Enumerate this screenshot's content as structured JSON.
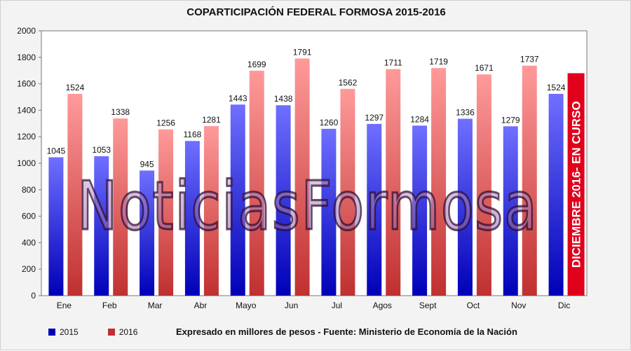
{
  "chart_data": {
    "type": "bar",
    "title": "COPARTICIPACIÓN FEDERAL FORMOSA 2015-2016",
    "categories": [
      "Ene",
      "Feb",
      "Mar",
      "Abr",
      "Mayo",
      "Jun",
      "Jul",
      "Agos",
      "Sept",
      "Oct",
      "Nov",
      "Dic"
    ],
    "series": [
      {
        "name": "2015",
        "values": [
          1045,
          1053,
          945,
          1168,
          1443,
          1438,
          1260,
          1297,
          1284,
          1336,
          1279,
          1524
        ],
        "color_top": "#6f6fff",
        "color_bottom": "#0000b8"
      },
      {
        "name": "2016",
        "values": [
          1524,
          1338,
          1256,
          1281,
          1699,
          1791,
          1562,
          1711,
          1719,
          1671,
          1737,
          null
        ],
        "color_top": "#ff9a9a",
        "color_bottom": "#c03030"
      }
    ],
    "ylim": [
      0,
      2000
    ],
    "yticks": [
      0,
      200,
      400,
      600,
      800,
      1000,
      1200,
      1400,
      1600,
      1800,
      2000
    ],
    "grid": false,
    "legend_position": "bottom-left",
    "source_note": "Expresado en millores de pesos - Fuente: Ministerio de Economía de la Nación",
    "annotation": {
      "text": "DICIEMBRE 2016- EN CURSO",
      "category": "Dic",
      "value": 1680,
      "color": "#e0001b"
    },
    "watermark": "NoticiasFormosa"
  }
}
